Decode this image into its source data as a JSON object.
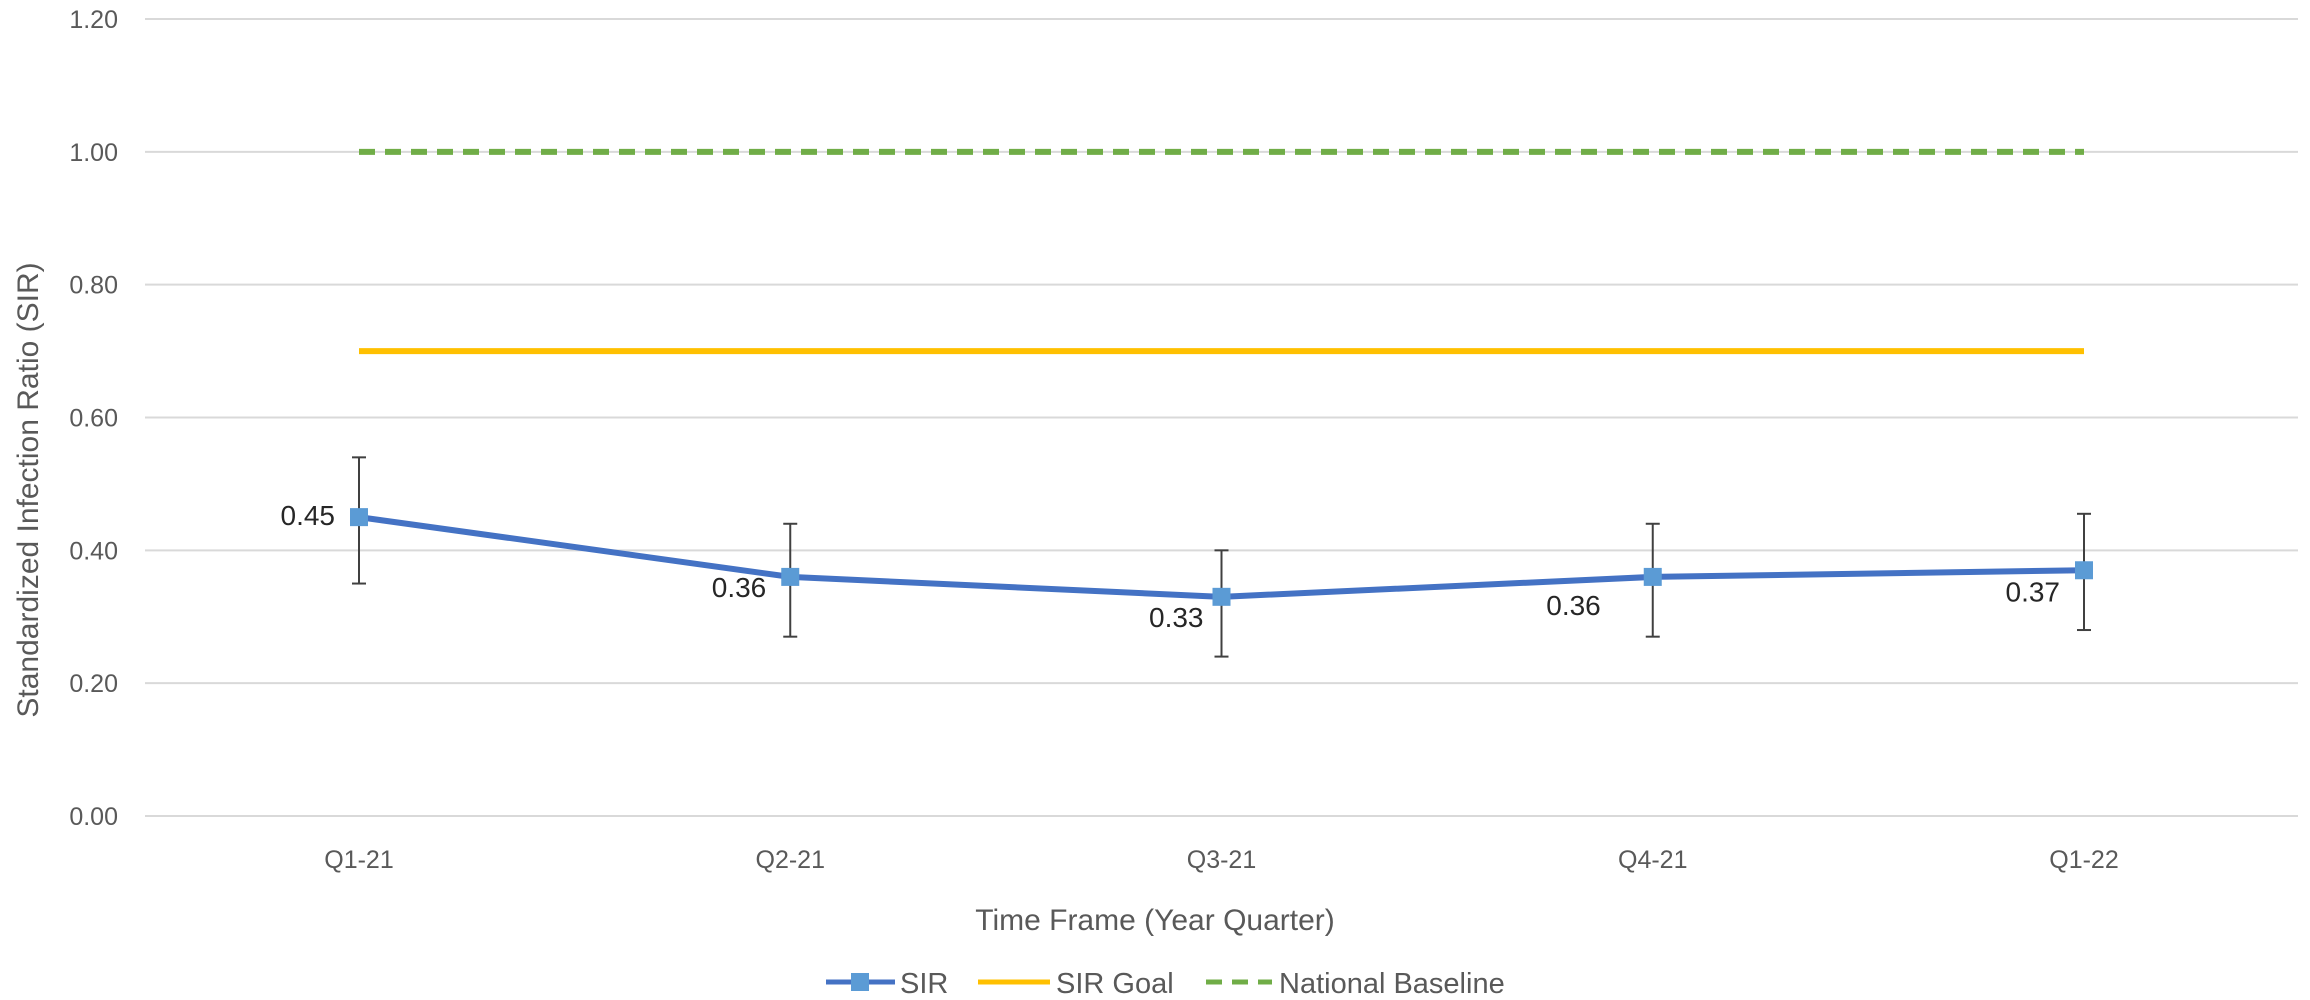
{
  "chart_data": {
    "type": "line",
    "title": "",
    "xlabel": "Time Frame (Year Quarter)",
    "ylabel": "Standardized Infection Ratio (SIR)",
    "categories": [
      "Q1-21",
      "Q2-21",
      "Q3-21",
      "Q4-21",
      "Q1-22"
    ],
    "ylim": [
      0,
      1.2
    ],
    "yticks": [
      0,
      0.2,
      0.4,
      0.6,
      0.8,
      1.0,
      1.2
    ],
    "ytick_labels": [
      "0.00",
      "0.20",
      "0.40",
      "0.60",
      "0.80",
      "1.00",
      "1.20"
    ],
    "grid": "horizontal",
    "legend_position": "bottom",
    "series": [
      {
        "name": "SIR",
        "values": [
          0.45,
          0.36,
          0.33,
          0.36,
          0.37
        ],
        "data_labels": [
          "0.45",
          "0.36",
          "0.33",
          "0.36",
          "0.37"
        ],
        "error_low": [
          0.35,
          0.27,
          0.24,
          0.27,
          0.28
        ],
        "error_high": [
          0.54,
          0.44,
          0.4,
          0.44,
          0.455
        ],
        "color": "#4472C4",
        "marker_color": "#5B9BD5",
        "marker": "square",
        "style": "solid"
      },
      {
        "name": "SIR Goal",
        "values": [
          0.7,
          0.7,
          0.7,
          0.7,
          0.7
        ],
        "color": "#FFC000",
        "style": "solid"
      },
      {
        "name": "National Baseline",
        "values": [
          1.0,
          1.0,
          1.0,
          1.0,
          1.0
        ],
        "color": "#70AD47",
        "style": "dashed"
      }
    ]
  }
}
